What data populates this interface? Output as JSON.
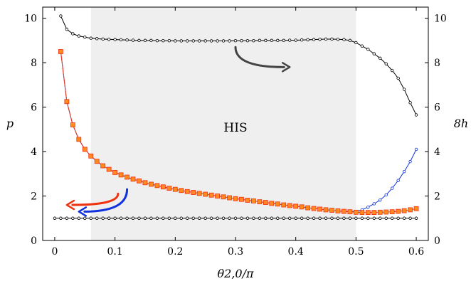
{
  "chart_data": {
    "type": "line",
    "xlabel": "θ2,0/π",
    "ylabel_left": "p",
    "ylabel_right": "8h",
    "xlim": [
      -0.02,
      0.62
    ],
    "ylim": [
      0,
      10.5
    ],
    "yticks": [
      0,
      2,
      4,
      6,
      8,
      10
    ],
    "xticks": [
      0,
      0.1,
      0.2,
      0.3,
      0.4,
      0.5,
      0.6
    ],
    "xtick_labels": [
      "0",
      "0.1",
      "0.2",
      "0.3",
      "0.4",
      "0.5",
      "0.6"
    ],
    "ytick_labels": [
      "0",
      "2",
      "4",
      "6",
      "8",
      "10"
    ],
    "shaded_region": {
      "x_start": 0.06,
      "x_end": 0.5,
      "label": "HIS",
      "label_x": 0.3,
      "label_y": 4.9
    },
    "arrows": [
      {
        "color": "#444444",
        "from": [
          0.3,
          8.7
        ],
        "to": [
          0.39,
          7.8
        ],
        "direction": "right"
      },
      {
        "color": "#ee3311",
        "from": [
          0.105,
          2.1
        ],
        "to": [
          0.02,
          1.6
        ],
        "direction": "left"
      },
      {
        "color": "#1133dd",
        "from": [
          0.12,
          2.3
        ],
        "to": [
          0.04,
          1.3
        ],
        "direction": "left"
      }
    ],
    "series": [
      {
        "color": "#000000",
        "marker": "circle",
        "axis": "right",
        "x": [
          0.01,
          0.02,
          0.03,
          0.04,
          0.05,
          0.06,
          0.07,
          0.08,
          0.09,
          0.1,
          0.11,
          0.12,
          0.13,
          0.14,
          0.15,
          0.16,
          0.17,
          0.18,
          0.19,
          0.2,
          0.21,
          0.22,
          0.23,
          0.24,
          0.25,
          0.26,
          0.27,
          0.28,
          0.29,
          0.3,
          0.31,
          0.32,
          0.33,
          0.34,
          0.35,
          0.36,
          0.37,
          0.38,
          0.39,
          0.4,
          0.41,
          0.42,
          0.43,
          0.44,
          0.45,
          0.46,
          0.47,
          0.48,
          0.49,
          0.5,
          0.51,
          0.52,
          0.53,
          0.54,
          0.55,
          0.56,
          0.57,
          0.58,
          0.59,
          0.6
        ],
        "y": [
          10.1,
          9.5,
          9.3,
          9.2,
          9.15,
          9.1,
          9.08,
          9.06,
          9.05,
          9.04,
          9.03,
          9.02,
          9.01,
          9.0,
          9.0,
          9.0,
          8.99,
          8.99,
          8.99,
          8.98,
          8.98,
          8.98,
          8.98,
          8.98,
          8.98,
          8.98,
          8.98,
          8.98,
          8.98,
          8.99,
          8.99,
          8.99,
          8.99,
          9.0,
          9.0,
          9.0,
          9.0,
          9.0,
          9.01,
          9.01,
          9.02,
          9.03,
          9.04,
          9.05,
          9.06,
          9.06,
          9.05,
          9.04,
          9.0,
          8.9,
          8.75,
          8.6,
          8.4,
          8.2,
          7.95,
          7.65,
          7.3,
          6.8,
          6.2,
          5.65
        ]
      },
      {
        "color": "#1133dd",
        "marker": "circle",
        "axis": "left",
        "x": [
          0.01,
          0.02,
          0.03,
          0.04,
          0.05,
          0.06,
          0.07,
          0.08,
          0.09,
          0.1,
          0.11,
          0.12,
          0.13,
          0.14,
          0.15,
          0.16,
          0.17,
          0.18,
          0.19,
          0.2,
          0.21,
          0.22,
          0.23,
          0.24,
          0.25,
          0.26,
          0.27,
          0.28,
          0.29,
          0.3,
          0.31,
          0.32,
          0.33,
          0.34,
          0.35,
          0.36,
          0.37,
          0.38,
          0.39,
          0.4,
          0.41,
          0.42,
          0.43,
          0.44,
          0.45,
          0.46,
          0.47,
          0.48,
          0.49,
          0.5,
          0.51,
          0.52,
          0.53,
          0.54,
          0.55,
          0.56,
          0.57,
          0.58,
          0.59,
          0.6
        ],
        "y": [
          8.5,
          6.25,
          5.2,
          4.55,
          4.1,
          3.8,
          3.56,
          3.36,
          3.2,
          3.06,
          2.95,
          2.85,
          2.76,
          2.68,
          2.6,
          2.53,
          2.47,
          2.41,
          2.35,
          2.3,
          2.25,
          2.2,
          2.16,
          2.12,
          2.08,
          2.04,
          2.0,
          1.96,
          1.92,
          1.88,
          1.85,
          1.81,
          1.78,
          1.74,
          1.71,
          1.67,
          1.64,
          1.6,
          1.57,
          1.54,
          1.51,
          1.47,
          1.44,
          1.41,
          1.38,
          1.36,
          1.33,
          1.31,
          1.3,
          1.3,
          1.38,
          1.5,
          1.65,
          1.82,
          2.05,
          2.35,
          2.7,
          3.1,
          3.55,
          4.1
        ]
      },
      {
        "color": "#ee3311",
        "marker": "square",
        "axis": "left",
        "x": [
          0.01,
          0.02,
          0.03,
          0.04,
          0.05,
          0.06,
          0.07,
          0.08,
          0.09,
          0.1,
          0.11,
          0.12,
          0.13,
          0.14,
          0.15,
          0.16,
          0.17,
          0.18,
          0.19,
          0.2,
          0.21,
          0.22,
          0.23,
          0.24,
          0.25,
          0.26,
          0.27,
          0.28,
          0.29,
          0.3,
          0.31,
          0.32,
          0.33,
          0.34,
          0.35,
          0.36,
          0.37,
          0.38,
          0.39,
          0.4,
          0.41,
          0.42,
          0.43,
          0.44,
          0.45,
          0.46,
          0.47,
          0.48,
          0.49,
          0.5,
          0.51,
          0.52,
          0.53,
          0.54,
          0.55,
          0.56,
          0.57,
          0.58,
          0.59,
          0.6
        ],
        "y": [
          8.5,
          6.25,
          5.2,
          4.55,
          4.1,
          3.8,
          3.56,
          3.36,
          3.2,
          3.06,
          2.95,
          2.85,
          2.76,
          2.68,
          2.6,
          2.53,
          2.47,
          2.41,
          2.35,
          2.3,
          2.25,
          2.2,
          2.16,
          2.12,
          2.08,
          2.04,
          2.0,
          1.96,
          1.92,
          1.88,
          1.85,
          1.81,
          1.78,
          1.74,
          1.71,
          1.67,
          1.64,
          1.6,
          1.57,
          1.54,
          1.51,
          1.47,
          1.44,
          1.41,
          1.38,
          1.36,
          1.33,
          1.31,
          1.29,
          1.27,
          1.26,
          1.26,
          1.26,
          1.27,
          1.28,
          1.29,
          1.31,
          1.34,
          1.38,
          1.43
        ]
      },
      {
        "color": "#000000",
        "marker": "circle",
        "axis": "left",
        "x": [
          0.0,
          0.01,
          0.02,
          0.03,
          0.04,
          0.05,
          0.06,
          0.07,
          0.08,
          0.09,
          0.1,
          0.11,
          0.12,
          0.13,
          0.14,
          0.15,
          0.16,
          0.17,
          0.18,
          0.19,
          0.2,
          0.21,
          0.22,
          0.23,
          0.24,
          0.25,
          0.26,
          0.27,
          0.28,
          0.29,
          0.3,
          0.31,
          0.32,
          0.33,
          0.34,
          0.35,
          0.36,
          0.37,
          0.38,
          0.39,
          0.4,
          0.41,
          0.42,
          0.43,
          0.44,
          0.45,
          0.46,
          0.47,
          0.48,
          0.49,
          0.5,
          0.51,
          0.52,
          0.53,
          0.54,
          0.55,
          0.56,
          0.57,
          0.58,
          0.59,
          0.6
        ],
        "y": [
          1,
          1,
          1,
          1,
          1,
          1,
          1,
          1,
          1,
          1,
          1,
          1,
          1,
          1,
          1,
          1,
          1,
          1,
          1,
          1,
          1,
          1,
          1,
          1,
          1,
          1,
          1,
          1,
          1,
          1,
          1,
          1,
          1,
          1,
          1,
          1,
          1,
          1,
          1,
          1,
          1,
          1,
          1,
          1,
          1,
          1,
          1,
          1,
          1,
          1,
          1,
          1,
          1,
          1,
          1,
          1,
          1,
          1,
          1,
          1,
          1
        ]
      }
    ]
  }
}
